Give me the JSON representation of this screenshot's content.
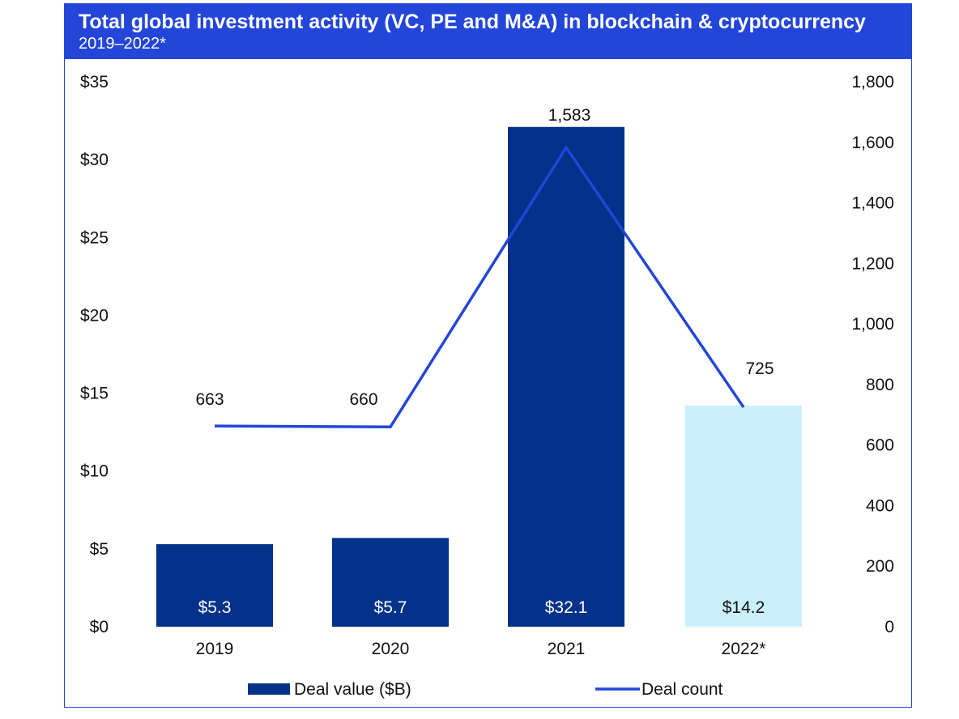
{
  "header": {
    "title": "Total global investment activity (VC, PE and M&A) in blockchain & cryptocurrency",
    "subtitle": "2019–2022*"
  },
  "colors": {
    "header_bg": "#2346d8",
    "bar_primary": "#04318a",
    "bar_highlight": "#c9f0fb",
    "line": "#2346d8"
  },
  "chart_data": {
    "type": "bar",
    "categories": [
      "2019",
      "2020",
      "2021",
      "2022*"
    ],
    "series": [
      {
        "name": "Deal value ($B)",
        "type": "bar",
        "axis": "left",
        "values": [
          5.3,
          5.7,
          32.1,
          14.2
        ],
        "data_labels": [
          "$5.3",
          "$5.7",
          "$32.1",
          "$14.2"
        ],
        "colors": [
          "#04318a",
          "#04318a",
          "#04318a",
          "#c9f0fb"
        ]
      },
      {
        "name": "Deal count",
        "type": "line",
        "axis": "right",
        "values": [
          663,
          660,
          1583,
          725
        ],
        "data_labels": [
          "663",
          "660",
          "1,583",
          "725"
        ]
      }
    ],
    "y_left": {
      "lim": [
        0,
        35
      ],
      "ticks": [
        0,
        5,
        10,
        15,
        20,
        25,
        30,
        35
      ],
      "tick_labels": [
        "$0",
        "$5",
        "$10",
        "$15",
        "$20",
        "$25",
        "$30",
        "$35"
      ]
    },
    "y_right": {
      "lim": [
        0,
        1800
      ],
      "ticks": [
        0,
        200,
        400,
        600,
        800,
        1000,
        1200,
        1400,
        1600,
        1800
      ],
      "tick_labels": [
        "0",
        "200",
        "400",
        "600",
        "800",
        "1,000",
        "1,200",
        "1,400",
        "1,600",
        "1,800"
      ]
    },
    "grid": false,
    "legend_position": "bottom"
  }
}
